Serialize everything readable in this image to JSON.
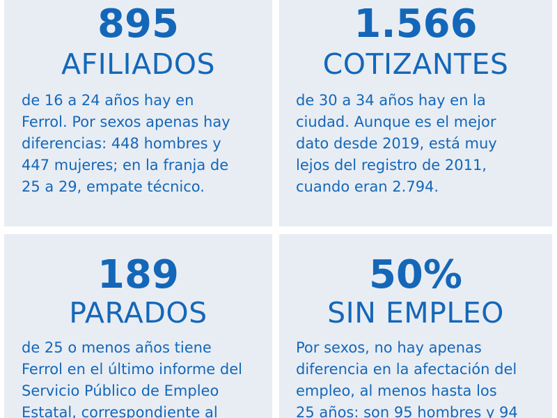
{
  "cards": [
    {
      "number": "895",
      "label": "AFILIADOS",
      "description": "de 16 a 24 años hay en\nFerrol. Por sexos apenas hay\ndiferencias: 448 hombres y\n447 mujeres; en la franja de\n25 a 29, empate técnico."
    },
    {
      "number": "1.566",
      "label": "COTIZANTES",
      "description": "de 30 a 34 años hay en la\nciudad. Aunque es el mejor\ndato desde 2019, está muy\nlejos del registro de 2011,\ncuando eran 2.794."
    },
    {
      "number": "189",
      "label": "PARADOS",
      "description": "de 25 o menos años tiene\nFerrol en el último informe del\nServicio Público de Empleo\nEstatal, correspondiente al"
    },
    {
      "number": "50%",
      "label": "SIN EMPLEO",
      "description": "Por sexos, no hay apenas\ndiferencia en la afectación del\nempleo, al menos hasta los\n25 años: son 95 hombres y 94"
    }
  ],
  "colors": {
    "accent": "#1467b8",
    "card_background": "#e8edf4",
    "page_background": "#ffffff"
  }
}
